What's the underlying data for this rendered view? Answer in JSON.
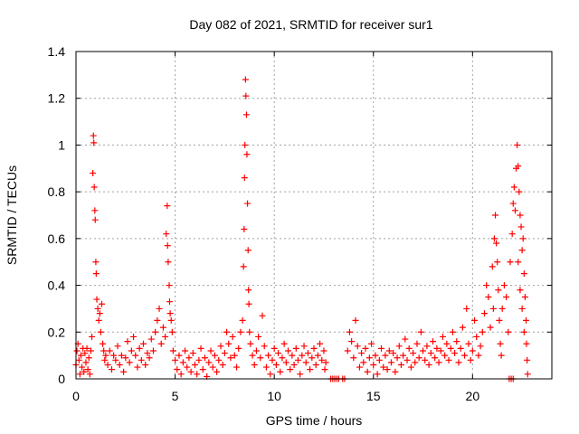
{
  "chart_data": {
    "type": "scatter",
    "title": "Day 082 of 2021, SRMTID for receiver sur1",
    "xlabel": "GPS time / hours",
    "ylabel": "SRMTID / TECUs",
    "xlim": [
      0,
      24
    ],
    "ylim": [
      0,
      1.4
    ],
    "x_ticks": [
      0,
      5,
      10,
      15,
      20
    ],
    "x_tick_labels": [
      "0",
      "5",
      "10",
      "15",
      "20"
    ],
    "y_ticks": [
      0,
      0.2,
      0.4,
      0.6,
      0.8,
      1,
      1.2,
      1.4
    ],
    "y_tick_labels": [
      "0",
      "0.2",
      "0.4",
      "0.6",
      "0.8",
      "1",
      "1.2",
      "1.4"
    ],
    "grid": true,
    "marker": "plus",
    "series": [
      {
        "name": "SRMTID",
        "color": "#ff0000",
        "points": [
          [
            0.0,
            0.06
          ],
          [
            0.05,
            0.12
          ],
          [
            0.1,
            0.15
          ],
          [
            0.15,
            0.08
          ],
          [
            0.2,
            0.02
          ],
          [
            0.25,
            0.1
          ],
          [
            0.3,
            0.05
          ],
          [
            0.35,
            0.13
          ],
          [
            0.4,
            0.03
          ],
          [
            0.45,
            0.11
          ],
          [
            0.5,
            0.07
          ],
          [
            0.55,
            0.13
          ],
          [
            0.6,
            0.04
          ],
          [
            0.65,
            0.09
          ],
          [
            0.7,
            0.02
          ],
          [
            0.75,
            0.12
          ],
          [
            0.8,
            0.18
          ],
          [
            0.85,
            0.88
          ],
          [
            0.88,
            1.04
          ],
          [
            0.9,
            1.01
          ],
          [
            0.92,
            0.82
          ],
          [
            0.95,
            0.72
          ],
          [
            0.97,
            0.68
          ],
          [
            1.0,
            0.5
          ],
          [
            1.02,
            0.45
          ],
          [
            1.05,
            0.34
          ],
          [
            1.1,
            0.3
          ],
          [
            1.15,
            0.25
          ],
          [
            1.2,
            0.28
          ],
          [
            1.25,
            0.2
          ],
          [
            1.3,
            0.32
          ],
          [
            1.35,
            0.15
          ],
          [
            1.4,
            0.12
          ],
          [
            1.45,
            0.08
          ],
          [
            1.5,
            0.1
          ],
          [
            1.6,
            0.06
          ],
          [
            1.7,
            0.12
          ],
          [
            1.8,
            0.04
          ],
          [
            1.9,
            0.1
          ],
          [
            2.0,
            0.08
          ],
          [
            2.1,
            0.14
          ],
          [
            2.2,
            0.06
          ],
          [
            2.3,
            0.1
          ],
          [
            2.4,
            0.03
          ],
          [
            2.5,
            0.09
          ],
          [
            2.6,
            0.16
          ],
          [
            2.7,
            0.07
          ],
          [
            2.8,
            0.12
          ],
          [
            2.9,
            0.18
          ],
          [
            3.0,
            0.1
          ],
          [
            3.1,
            0.05
          ],
          [
            3.2,
            0.13
          ],
          [
            3.3,
            0.08
          ],
          [
            3.4,
            0.15
          ],
          [
            3.5,
            0.06
          ],
          [
            3.6,
            0.11
          ],
          [
            3.7,
            0.09
          ],
          [
            3.8,
            0.17
          ],
          [
            3.9,
            0.12
          ],
          [
            4.0,
            0.2
          ],
          [
            4.1,
            0.25
          ],
          [
            4.2,
            0.3
          ],
          [
            4.3,
            0.15
          ],
          [
            4.4,
            0.22
          ],
          [
            4.5,
            0.18
          ],
          [
            4.55,
            0.62
          ],
          [
            4.6,
            0.74
          ],
          [
            4.62,
            0.57
          ],
          [
            4.65,
            0.5
          ],
          [
            4.7,
            0.4
          ],
          [
            4.72,
            0.33
          ],
          [
            4.75,
            0.28
          ],
          [
            4.8,
            0.25
          ],
          [
            4.85,
            0.2
          ],
          [
            4.9,
            0.12
          ],
          [
            5.0,
            0.08
          ],
          [
            5.1,
            0.04
          ],
          [
            5.2,
            0.1
          ],
          [
            5.3,
            0.02
          ],
          [
            5.4,
            0.07
          ],
          [
            5.5,
            0.12
          ],
          [
            5.6,
            0.05
          ],
          [
            5.7,
            0.09
          ],
          [
            5.8,
            0.03
          ],
          [
            5.9,
            0.11
          ],
          [
            6.0,
            0.06
          ],
          [
            6.1,
            0.02
          ],
          [
            6.2,
            0.08
          ],
          [
            6.3,
            0.13
          ],
          [
            6.4,
            0.04
          ],
          [
            6.5,
            0.09
          ],
          [
            6.6,
            0.01
          ],
          [
            6.7,
            0.07
          ],
          [
            6.8,
            0.12
          ],
          [
            6.9,
            0.05
          ],
          [
            7.0,
            0.1
          ],
          [
            7.1,
            0.03
          ],
          [
            7.2,
            0.08
          ],
          [
            7.3,
            0.14
          ],
          [
            7.4,
            0.06
          ],
          [
            7.5,
            0.11
          ],
          [
            7.6,
            0.2
          ],
          [
            7.7,
            0.15
          ],
          [
            7.8,
            0.09
          ],
          [
            7.9,
            0.18
          ],
          [
            8.0,
            0.1
          ],
          [
            8.1,
            0.05
          ],
          [
            8.2,
            0.13
          ],
          [
            8.3,
            0.2
          ],
          [
            8.4,
            0.25
          ],
          [
            8.45,
            0.48
          ],
          [
            8.48,
            0.64
          ],
          [
            8.5,
            0.86
          ],
          [
            8.52,
            1.0
          ],
          [
            8.55,
            1.28
          ],
          [
            8.57,
            1.21
          ],
          [
            8.6,
            1.13
          ],
          [
            8.62,
            0.96
          ],
          [
            8.65,
            0.75
          ],
          [
            8.68,
            0.55
          ],
          [
            8.7,
            0.38
          ],
          [
            8.72,
            0.32
          ],
          [
            8.75,
            0.2
          ],
          [
            8.8,
            0.15
          ],
          [
            8.9,
            0.1
          ],
          [
            9.0,
            0.06
          ],
          [
            9.1,
            0.12
          ],
          [
            9.2,
            0.18
          ],
          [
            9.3,
            0.09
          ],
          [
            9.4,
            0.27
          ],
          [
            9.5,
            0.14
          ],
          [
            9.6,
            0.05
          ],
          [
            9.7,
            0.1
          ],
          [
            9.8,
            0.02
          ],
          [
            9.9,
            0.08
          ],
          [
            10.0,
            0.13
          ],
          [
            10.1,
            0.06
          ],
          [
            10.2,
            0.11
          ],
          [
            10.3,
            0.03
          ],
          [
            10.4,
            0.09
          ],
          [
            10.5,
            0.15
          ],
          [
            10.6,
            0.07
          ],
          [
            10.7,
            0.12
          ],
          [
            10.8,
            0.04
          ],
          [
            10.9,
            0.1
          ],
          [
            11.0,
            0.06
          ],
          [
            11.1,
            0.13
          ],
          [
            11.2,
            0.08
          ],
          [
            11.3,
            0.02
          ],
          [
            11.4,
            0.1
          ],
          [
            11.5,
            0.14
          ],
          [
            11.6,
            0.07
          ],
          [
            11.7,
            0.11
          ],
          [
            11.8,
            0.04
          ],
          [
            11.9,
            0.09
          ],
          [
            12.0,
            0.13
          ],
          [
            12.1,
            0.06
          ],
          [
            12.2,
            0.1
          ],
          [
            12.3,
            0.15
          ],
          [
            12.4,
            0.08
          ],
          [
            12.5,
            0.12
          ],
          [
            12.55,
            0.04
          ],
          [
            12.6,
            0.07
          ],
          [
            12.85,
            0.0
          ],
          [
            12.95,
            0.0
          ],
          [
            13.05,
            0.0
          ],
          [
            13.15,
            0.0
          ],
          [
            13.25,
            0.0
          ],
          [
            13.45,
            0.0
          ],
          [
            13.55,
            0.0
          ],
          [
            13.7,
            0.12
          ],
          [
            13.8,
            0.2
          ],
          [
            13.9,
            0.16
          ],
          [
            14.0,
            0.09
          ],
          [
            14.1,
            0.25
          ],
          [
            14.2,
            0.14
          ],
          [
            14.3,
            0.05
          ],
          [
            14.4,
            0.11
          ],
          [
            14.5,
            0.07
          ],
          [
            14.6,
            0.13
          ],
          [
            14.7,
            0.03
          ],
          [
            14.8,
            0.09
          ],
          [
            14.9,
            0.15
          ],
          [
            15.0,
            0.06
          ],
          [
            15.1,
            0.1
          ],
          [
            15.2,
            0.02
          ],
          [
            15.3,
            0.08
          ],
          [
            15.4,
            0.13
          ],
          [
            15.5,
            0.05
          ],
          [
            15.6,
            0.1
          ],
          [
            15.7,
            0.04
          ],
          [
            15.8,
            0.12
          ],
          [
            15.9,
            0.07
          ],
          [
            16.0,
            0.11
          ],
          [
            16.1,
            0.03
          ],
          [
            16.2,
            0.09
          ],
          [
            16.3,
            0.14
          ],
          [
            16.4,
            0.06
          ],
          [
            16.5,
            0.1
          ],
          [
            16.6,
            0.17
          ],
          [
            16.7,
            0.08
          ],
          [
            16.8,
            0.13
          ],
          [
            16.9,
            0.05
          ],
          [
            17.0,
            0.11
          ],
          [
            17.1,
            0.07
          ],
          [
            17.2,
            0.15
          ],
          [
            17.3,
            0.09
          ],
          [
            17.4,
            0.2
          ],
          [
            17.5,
            0.12
          ],
          [
            17.6,
            0.08
          ],
          [
            17.7,
            0.14
          ],
          [
            17.8,
            0.06
          ],
          [
            17.9,
            0.11
          ],
          [
            18.0,
            0.16
          ],
          [
            18.1,
            0.09
          ],
          [
            18.2,
            0.13
          ],
          [
            18.3,
            0.07
          ],
          [
            18.4,
            0.12
          ],
          [
            18.5,
            0.18
          ],
          [
            18.6,
            0.1
          ],
          [
            18.7,
            0.15
          ],
          [
            18.8,
            0.08
          ],
          [
            18.9,
            0.13
          ],
          [
            19.0,
            0.2
          ],
          [
            19.1,
            0.11
          ],
          [
            19.2,
            0.16
          ],
          [
            19.3,
            0.07
          ],
          [
            19.4,
            0.13
          ],
          [
            19.5,
            0.22
          ],
          [
            19.6,
            0.1
          ],
          [
            19.7,
            0.3
          ],
          [
            19.8,
            0.15
          ],
          [
            19.9,
            0.08
          ],
          [
            20.0,
            0.12
          ],
          [
            20.1,
            0.25
          ],
          [
            20.2,
            0.18
          ],
          [
            20.3,
            0.1
          ],
          [
            20.4,
            0.14
          ],
          [
            20.5,
            0.2
          ],
          [
            20.6,
            0.28
          ],
          [
            20.7,
            0.4
          ],
          [
            20.8,
            0.35
          ],
          [
            20.9,
            0.22
          ],
          [
            21.0,
            0.48
          ],
          [
            21.05,
            0.3
          ],
          [
            21.1,
            0.6
          ],
          [
            21.15,
            0.7
          ],
          [
            21.2,
            0.58
          ],
          [
            21.25,
            0.5
          ],
          [
            21.3,
            0.38
          ],
          [
            21.35,
            0.25
          ],
          [
            21.4,
            0.15
          ],
          [
            21.45,
            0.1
          ],
          [
            21.5,
            0.3
          ],
          [
            21.6,
            0.4
          ],
          [
            21.7,
            0.35
          ],
          [
            21.8,
            0.2
          ],
          [
            21.85,
            0.0
          ],
          [
            21.95,
            0.0
          ],
          [
            22.05,
            0.0
          ],
          [
            21.9,
            0.5
          ],
          [
            22.0,
            0.62
          ],
          [
            22.05,
            0.75
          ],
          [
            22.1,
            0.82
          ],
          [
            22.15,
            0.72
          ],
          [
            22.2,
            0.9
          ],
          [
            22.25,
            1.0
          ],
          [
            22.3,
            0.91
          ],
          [
            22.35,
            0.8
          ],
          [
            22.4,
            0.7
          ],
          [
            22.45,
            0.65
          ],
          [
            22.5,
            0.55
          ],
          [
            22.55,
            0.6
          ],
          [
            22.6,
            0.45
          ],
          [
            22.65,
            0.35
          ],
          [
            22.7,
            0.25
          ],
          [
            22.72,
            0.15
          ],
          [
            22.75,
            0.08
          ],
          [
            22.78,
            0.02
          ],
          [
            22.5,
            0.3
          ],
          [
            22.6,
            0.2
          ],
          [
            22.4,
            0.38
          ],
          [
            22.3,
            0.5
          ]
        ]
      }
    ]
  }
}
